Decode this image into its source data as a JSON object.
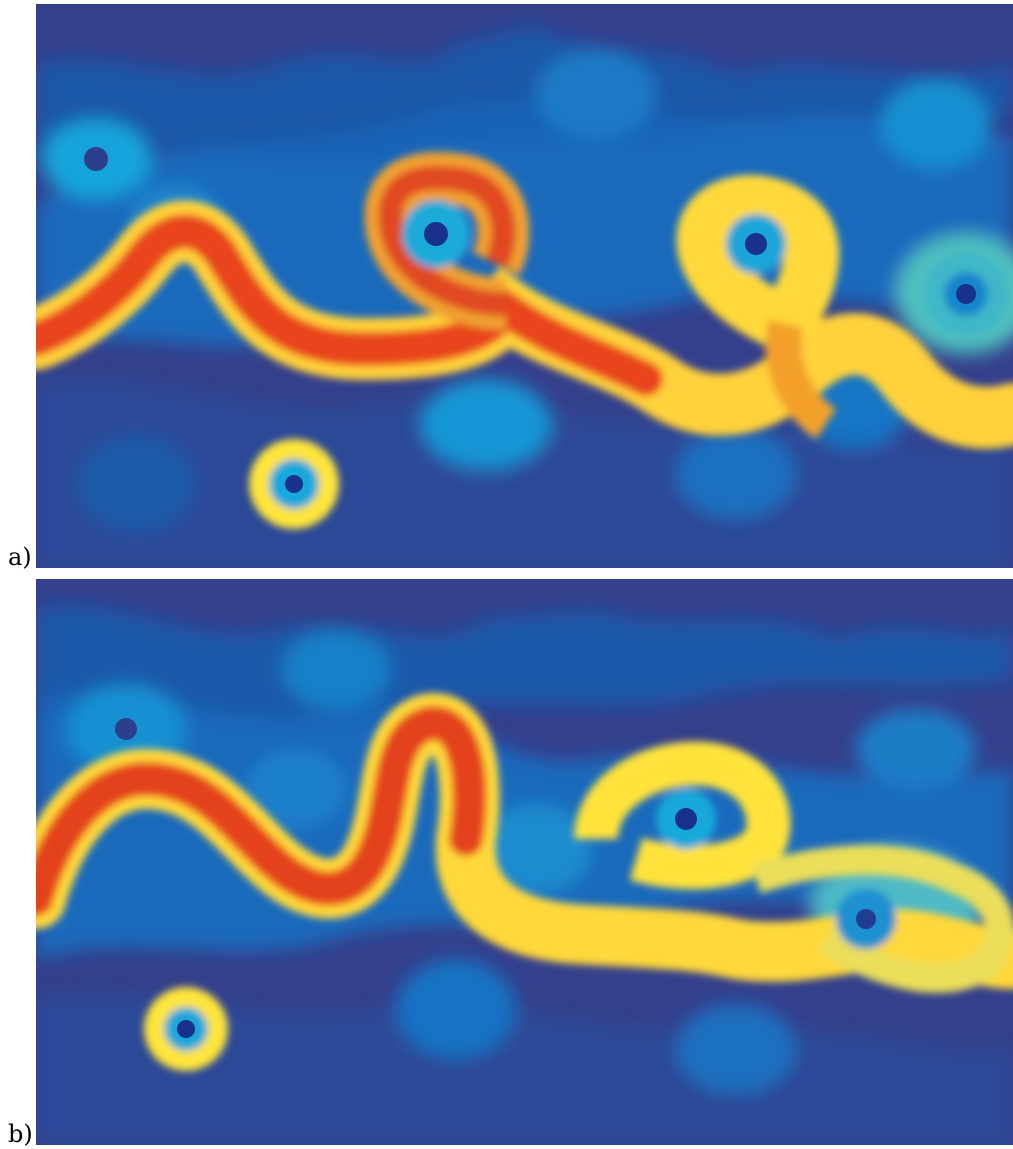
{
  "figure": {
    "panels": [
      {
        "id": "a",
        "label": "a)"
      },
      {
        "id": "b",
        "label": "b)"
      }
    ],
    "colormap": {
      "low": "#2f3f8f",
      "mid_low": "#1a73c7",
      "mid": "#10a8e0",
      "mid_high": "#ffe82a",
      "high": "#d82a17"
    }
  }
}
